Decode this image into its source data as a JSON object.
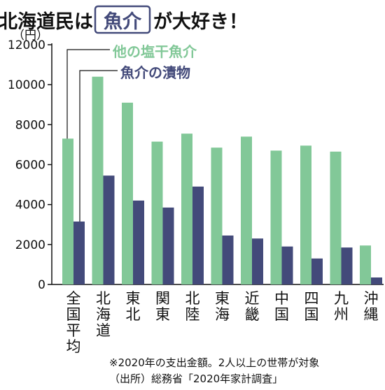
{
  "title": {
    "before": "北海道民は",
    "boxed": "魚介",
    "after": "が大好き！"
  },
  "chart_data": {
    "type": "bar",
    "ylabel": "（円）",
    "ylim": [
      0,
      12000
    ],
    "yticks": [
      0,
      2000,
      4000,
      6000,
      8000,
      10000,
      12000
    ],
    "grid": false,
    "legend_position": "top-left",
    "categories": [
      "全国平均",
      "北海道",
      "東北",
      "関東",
      "北陸",
      "東海",
      "近畿",
      "中国",
      "四国",
      "九州",
      "沖縄"
    ],
    "series": [
      {
        "name": "他の塩干魚介",
        "color": "#82c898",
        "values": [
          7300,
          10400,
          9100,
          7150,
          7550,
          6850,
          7400,
          6700,
          6950,
          6650,
          1950
        ]
      },
      {
        "name": "魚介の漬物",
        "color": "#434a7a",
        "values": [
          3150,
          5450,
          4200,
          3850,
          4900,
          2450,
          2300,
          1900,
          1300,
          1850,
          350
        ]
      }
    ]
  },
  "notes": [
    "※2020年の支出金額。2人以上の世帯が対象",
    "（出所）総務省「2020年家計調査」"
  ]
}
